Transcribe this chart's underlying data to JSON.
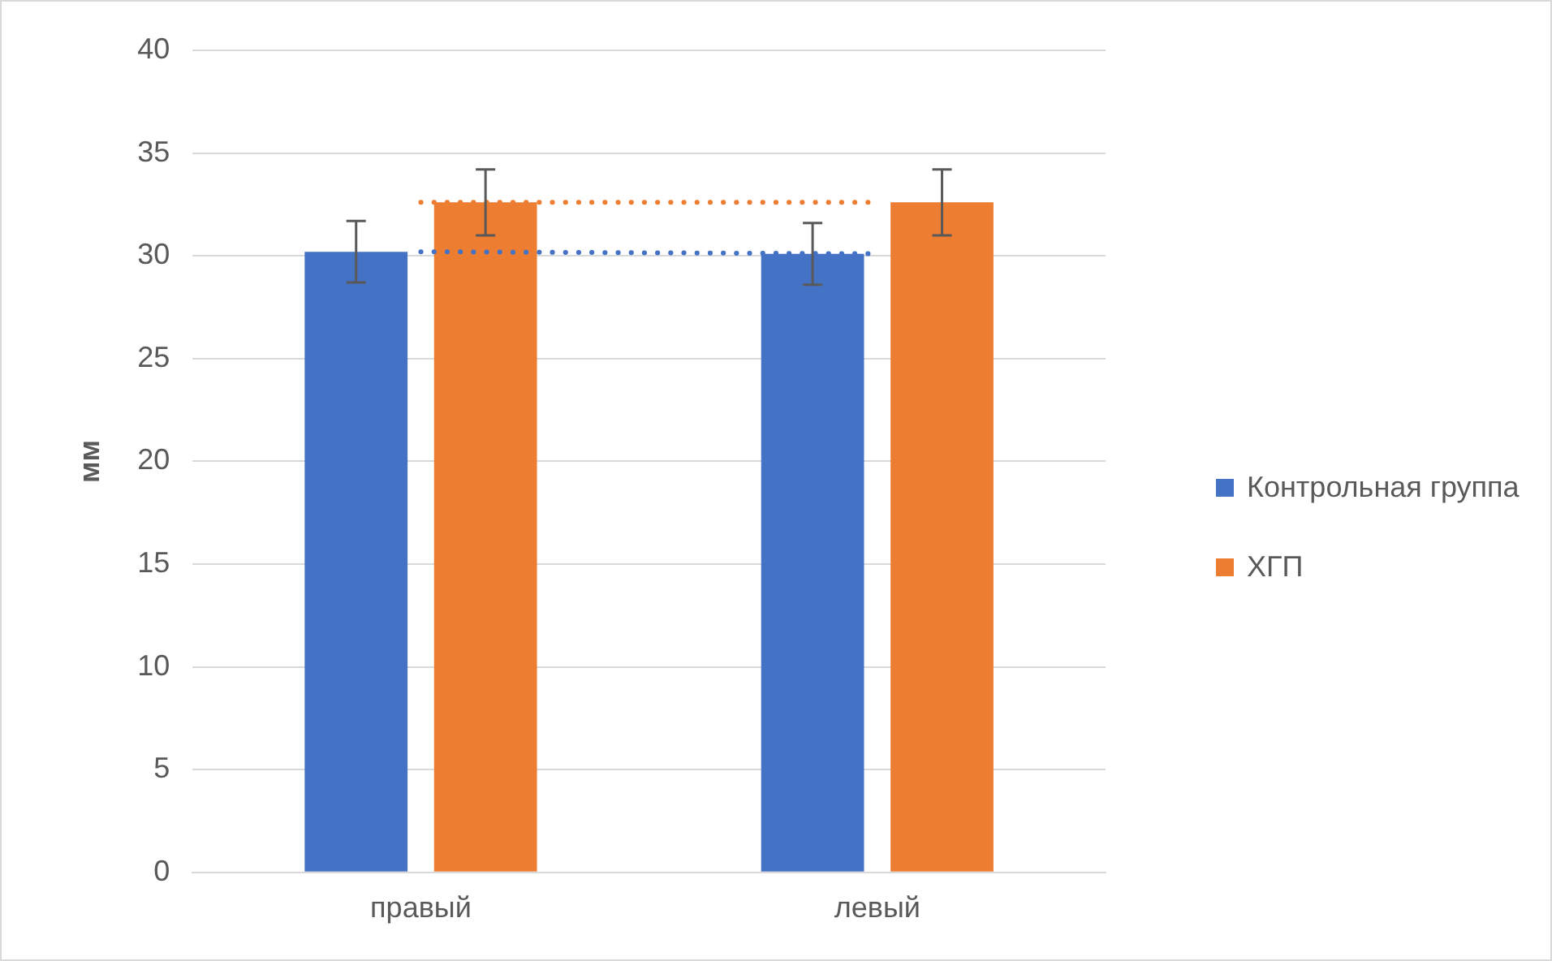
{
  "chart_data": {
    "type": "bar",
    "ylabel": "мм",
    "categories": [
      "правый",
      "левый"
    ],
    "series": [
      {
        "name": "Контрольная группа",
        "color": "#4472c4",
        "values": [
          30.2,
          30.1
        ],
        "errors": [
          1.5,
          1.5
        ]
      },
      {
        "name": "ХГП",
        "color": "#ed7d31",
        "values": [
          32.6,
          32.6
        ],
        "errors": [
          1.6,
          1.6
        ]
      },
      {
        "type": "line",
        "color": "#4472c4",
        "values": [
          30.2,
          30.1
        ],
        "line_style": "dotted"
      },
      {
        "type": "line",
        "color": "#ed7d31",
        "values": [
          32.6,
          32.6
        ],
        "line_style": "dotted"
      }
    ],
    "ylim": [
      0,
      40
    ],
    "yticks": [
      0,
      5,
      10,
      15,
      20,
      25,
      30,
      35,
      40
    ],
    "grid": "y",
    "legend": "right"
  }
}
